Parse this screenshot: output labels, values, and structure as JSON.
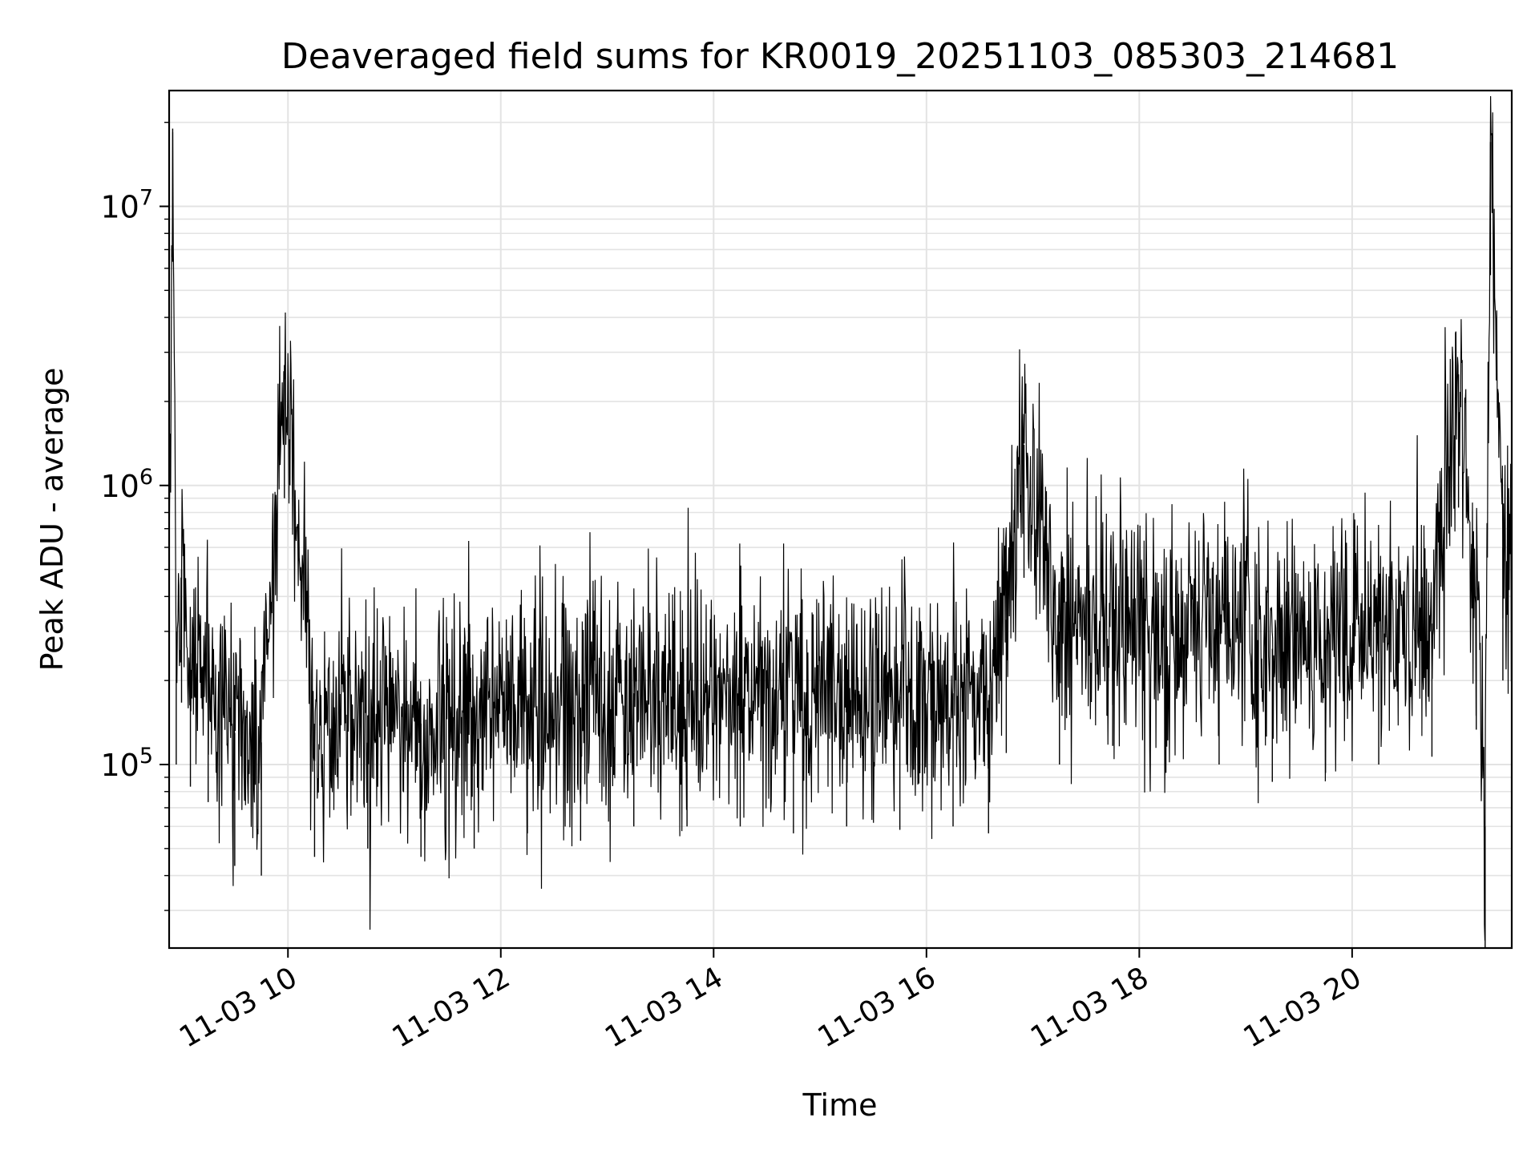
{
  "chart_data": {
    "type": "line",
    "title": "Deaveraged field sums for KR0019_20251103_085303_214681",
    "xlabel": "Time",
    "ylabel": "Peak ADU - average",
    "y_scale": "log",
    "ylim": [
      22000,
      26000000
    ],
    "xlim": [
      "11-03 08:53",
      "11-03 21:30"
    ],
    "grid": true,
    "legend": "none",
    "line_color": "#000000",
    "x_ticks": [
      "11-03 10",
      "11-03 12",
      "11-03 14",
      "11-03 16",
      "11-03 18",
      "11-03 20"
    ],
    "y_ticks": [
      {
        "base": "10",
        "exp": "5",
        "value": 100000
      },
      {
        "base": "10",
        "exp": "6",
        "value": 1000000
      },
      {
        "base": "10",
        "exp": "7",
        "value": 10000000
      }
    ],
    "series": [
      {
        "x": [
          "11-03 08:53",
          "11-03 08:55",
          "11-03 08:57",
          "11-03 09:00",
          "11-03 09:05",
          "11-03 09:15",
          "11-03 09:30",
          "11-03 09:45",
          "11-03 09:58",
          "11-03 10:15",
          "11-03 10:45",
          "11-03 11:15",
          "11-03 11:45",
          "11-03 12:15",
          "11-03 12:45",
          "11-03 13:15",
          "11-03 13:45",
          "11-03 14:15",
          "11-03 14:45",
          "11-03 15:15",
          "11-03 15:45",
          "11-03 16:15",
          "11-03 16:35",
          "11-03 16:45",
          "11-03 16:55",
          "11-03 17:15",
          "11-03 17:45",
          "11-03 18:15",
          "11-03 18:45",
          "11-03 19:15",
          "11-03 19:45",
          "11-03 20:15",
          "11-03 20:45",
          "11-03 21:00",
          "11-03 21:10",
          "11-03 21:15",
          "11-03 21:18",
          "11-03 21:25",
          "11-03 21:30"
        ],
        "values": [
          400000,
          19000000,
          300000,
          500000,
          250000,
          220000,
          130000,
          120000,
          2700000,
          140000,
          150000,
          140000,
          150000,
          170000,
          160000,
          180000,
          180000,
          180000,
          170000,
          180000,
          175000,
          180000,
          170000,
          330000,
          1400000,
          300000,
          350000,
          280000,
          300000,
          260000,
          280000,
          300000,
          320000,
          2500000,
          400000,
          60000,
          17000000,
          600000,
          550000
        ],
        "noise": {
          "amplitude_log10": 0.45,
          "seed": 214681
        }
      }
    ]
  }
}
